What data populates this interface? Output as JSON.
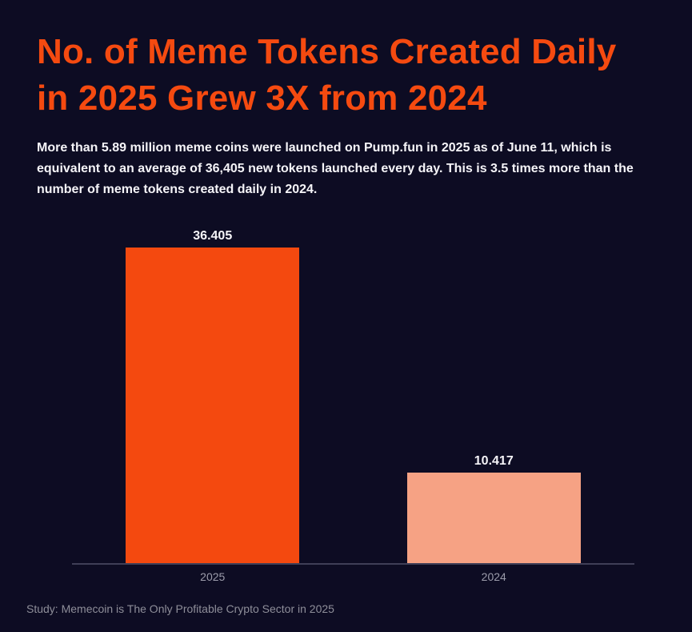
{
  "page": {
    "background_color": "#0d0c23"
  },
  "header": {
    "title_lines": [
      "No. of Meme Tokens Created Daily",
      "in 2025 Grew 3X from 2024"
    ],
    "title_color": "#f54a10"
  },
  "description": {
    "text": "More than 5.89 million meme coins were launched on Pump.fun in 2025 as of June 11, which is equivalent to an average of 36,405 new tokens launched every day. This is 3.5 times more than the number of meme tokens created daily in 2024."
  },
  "footer": {
    "source_text": "Study: Memecoin is The Only Profitable Crypto Sector in 2025"
  },
  "chart_data": {
    "type": "bar",
    "title": "No. of Meme Tokens Created Daily in 2025 Grew 3X from 2024",
    "categories": [
      "2025",
      "2024"
    ],
    "values": [
      36405,
      10417
    ],
    "value_labels": [
      "36.405",
      "10.417"
    ],
    "bar_colors": [
      "#f4490f",
      "#f6a284"
    ],
    "xlabel": "",
    "ylabel": "",
    "ylim": [
      0,
      38000
    ],
    "grid": false,
    "legend": false,
    "axis_line_color": "#3f3f57",
    "tick_label_color": "#9c9cab"
  }
}
